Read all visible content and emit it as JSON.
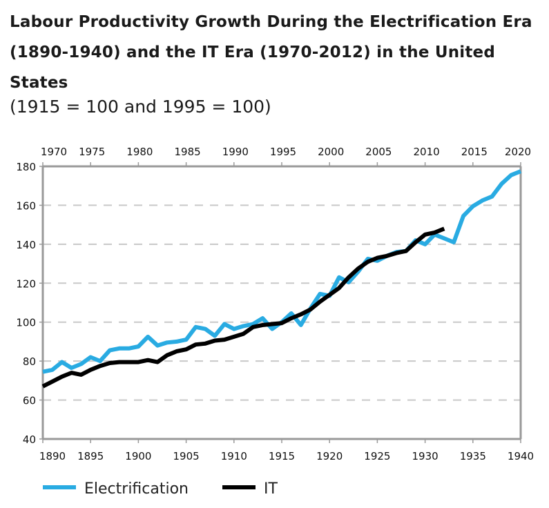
{
  "chart_data": {
    "type": "line",
    "title": "Labour Productivity Growth During the Electrification Era (1890-1940) and the IT Era (1970-2012) in the United States",
    "subtitle": "(1915 = 100 and 1995 = 100)",
    "xlabel": "",
    "ylabel": "",
    "ylim": [
      40,
      180
    ],
    "yticks": [
      40,
      60,
      80,
      100,
      120,
      140,
      160,
      180
    ],
    "x_bottom": {
      "lim": [
        1890,
        1940
      ],
      "ticks": [
        1890,
        1895,
        1900,
        1905,
        1910,
        1915,
        1920,
        1925,
        1930,
        1935,
        1940
      ]
    },
    "x_top": {
      "lim": [
        1970,
        2020
      ],
      "ticks": [
        1970,
        1975,
        1980,
        1985,
        1990,
        1995,
        2000,
        2005,
        2010,
        2015,
        2020
      ]
    },
    "grid": "horizontal dashed",
    "legend_position": "bottom",
    "series": [
      {
        "name": "Electrification",
        "color": "#29abe2",
        "axis": "bottom",
        "x_start": 1890,
        "values": [
          74.5,
          75.5,
          79.5,
          76.5,
          78.5,
          82,
          80,
          85.5,
          86.5,
          86.5,
          87.5,
          92.5,
          88,
          89.5,
          90,
          91,
          97.5,
          96.5,
          93,
          99,
          96.5,
          98,
          99,
          102,
          96.5,
          100,
          104.5,
          98.5,
          107,
          114.5,
          113.5,
          123,
          120.5,
          126,
          132.5,
          131.5,
          134,
          136,
          136.5,
          142,
          140,
          145,
          143,
          141,
          154.5,
          159.5,
          162.5,
          164.5,
          171,
          175.5,
          177.5
        ]
      },
      {
        "name": "IT",
        "color": "#000000",
        "axis": "top",
        "x_start": 1970,
        "values": [
          67,
          69.5,
          72,
          74,
          73,
          75.5,
          77.5,
          79,
          79.5,
          79.5,
          79.5,
          80.5,
          79.5,
          83,
          85,
          86,
          88.5,
          89,
          90.5,
          91,
          92.5,
          94,
          97.5,
          98.5,
          99,
          99.5,
          102,
          104,
          106.5,
          110.5,
          114,
          117.5,
          123,
          127.5,
          131,
          133,
          134,
          135.5,
          136.5,
          141,
          145,
          146,
          148
        ]
      }
    ]
  }
}
